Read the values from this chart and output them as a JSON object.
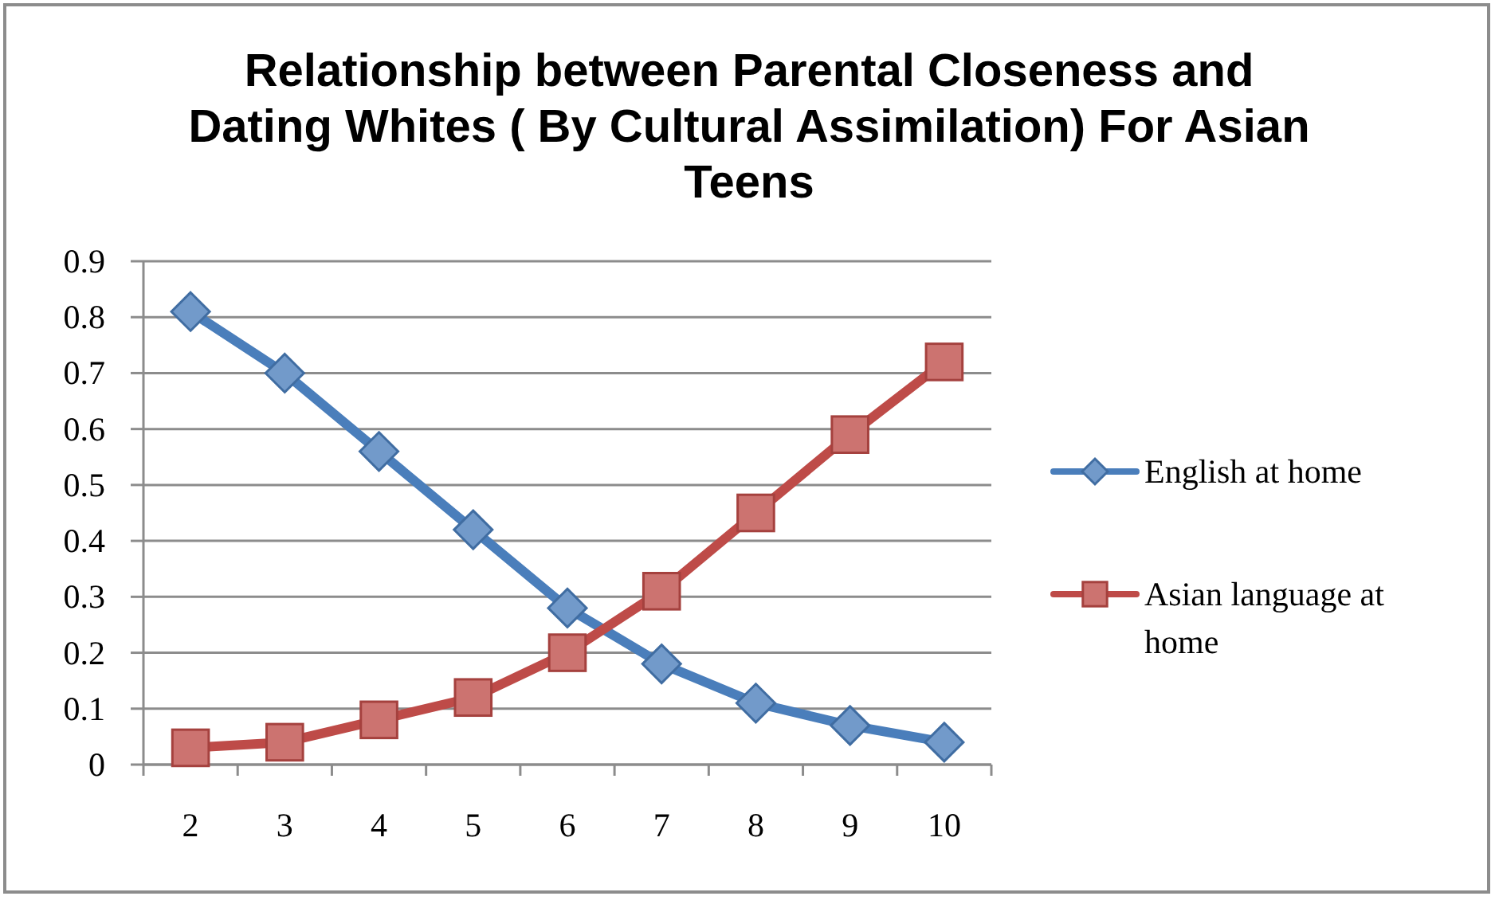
{
  "chart_data": {
    "type": "line",
    "title": "Relationship between Parental Closeness and Dating Whites ( By Cultural Assimilation) For Asian Teens",
    "categories": [
      "2",
      "3",
      "4",
      "5",
      "6",
      "7",
      "8",
      "9",
      "10"
    ],
    "series": [
      {
        "name": "English at home",
        "color": "#4a7ebb",
        "marker": "diamond",
        "values": [
          0.81,
          0.7,
          0.56,
          0.42,
          0.28,
          0.18,
          0.11,
          0.07,
          0.04
        ]
      },
      {
        "name": "Asian language at home",
        "color": "#be4b48",
        "marker": "square",
        "values": [
          0.03,
          0.04,
          0.08,
          0.12,
          0.2,
          0.31,
          0.45,
          0.59,
          0.72
        ]
      }
    ],
    "ylim": [
      0,
      0.9
    ],
    "yticks": [
      0,
      0.1,
      0.2,
      0.3,
      0.4,
      0.5,
      0.6,
      0.7,
      0.8,
      0.9
    ],
    "grid": "y",
    "legend": "right"
  }
}
